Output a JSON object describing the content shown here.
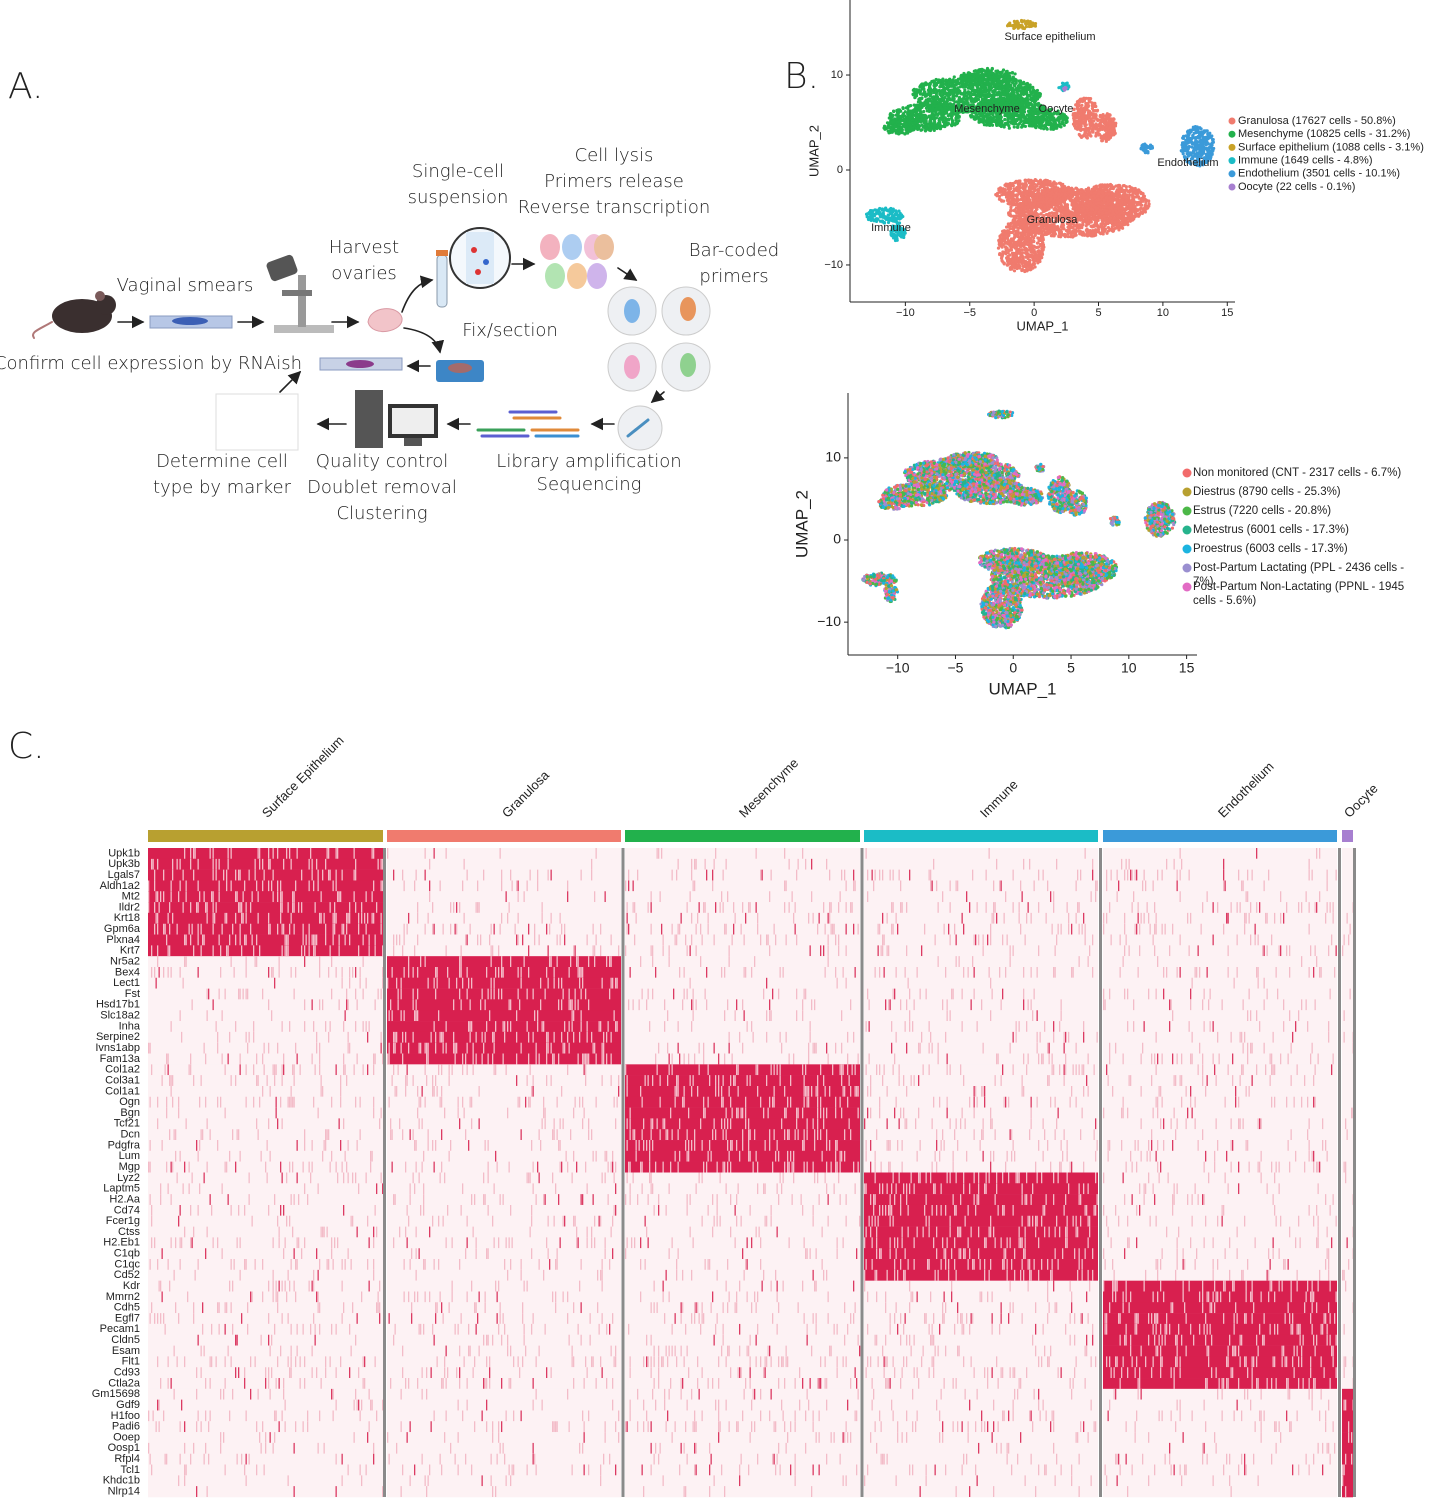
{
  "panel_a": {
    "label": "A.",
    "steps": [
      {
        "lines": [
          "Vaginal smears"
        ]
      },
      {
        "lines": [
          "Harvest",
          "ovaries"
        ]
      },
      {
        "lines": [
          "Single-cell",
          "suspension"
        ]
      },
      {
        "lines": [
          "Cell lysis",
          "Primers release",
          "Reverse transcription"
        ]
      },
      {
        "lines": [
          "Bar-coded",
          "primers"
        ]
      },
      {
        "lines": [
          "Fix/section"
        ]
      },
      {
        "lines": [
          "Confirm cell expression by RNAish"
        ]
      },
      {
        "lines": [
          "Determine cell",
          "type by marker"
        ]
      },
      {
        "lines": [
          "Quality control",
          "Doublet removal",
          "Clustering"
        ]
      },
      {
        "lines": [
          "Library amplification",
          "Sequencing"
        ]
      }
    ]
  },
  "panel_b": {
    "label": "B.",
    "plots": [
      {
        "xlabel": "UMAP_1",
        "ylabel": "UMAP_2",
        "xlim": [
          -14.3,
          15.6
        ],
        "ylim": [
          -13.9,
          17.9
        ],
        "xticks": [
          {
            "value": -10,
            "label": "−10"
          },
          {
            "value": -5,
            "label": "−5"
          },
          0,
          5,
          10,
          15
        ],
        "yticks": [
          {
            "value": -10,
            "label": "−10"
          },
          0,
          10
        ],
        "cluster_labels": [
          "Surface epithelium",
          "Mesenchyme",
          "Oocyte",
          "Endothelium",
          "Granulosa",
          "Immune"
        ],
        "legend": [
          {
            "name": "Granulosa (17627 cells - 50.8%)",
            "color": "#f07b6e"
          },
          {
            "name": "Mesenchyme (10825 cells - 31.2%)",
            "color": "#22b14c"
          },
          {
            "name": "Surface epithelium (1088 cells - 3.1%)",
            "color": "#c9a227"
          },
          {
            "name": "Immune (1649 cells - 4.8%)",
            "color": "#1bbcc6"
          },
          {
            "name": "Endothelium (3501 cells - 10.1%)",
            "color": "#3b9ad9"
          },
          {
            "name": "Oocyte (22 cells - 0.1%)",
            "color": "#a77fd0"
          }
        ]
      },
      {
        "xlabel": "UMAP_1",
        "ylabel": "UMAP_2",
        "xlim": [
          -14.3,
          15.9
        ],
        "ylim": [
          -14.0,
          17.9
        ],
        "xticks": [
          {
            "value": -10,
            "label": "−10"
          },
          {
            "value": -5,
            "label": "−5"
          },
          0,
          5,
          10,
          15
        ],
        "yticks": [
          {
            "value": -10,
            "label": "−10"
          },
          0,
          10
        ],
        "legend": [
          {
            "name": "Non monitored (CNT - 2317 cells - 6.7%)",
            "color": "#f26b6b"
          },
          {
            "name": "Diestrus (8790 cells - 25.3%)",
            "color": "#b8a030"
          },
          {
            "name": "Estrus (7220 cells - 20.8%)",
            "color": "#4cb848"
          },
          {
            "name": "Metestrus (6001 cells - 17.3%)",
            "color": "#26b38c"
          },
          {
            "name": "Proestrus (6003 cells - 17.3%)",
            "color": "#1cb4e0"
          },
          {
            "name": "Post-Partum Lactating (PPL - 2436 cells - 7%)",
            "color": "#9a8fd0"
          },
          {
            "name": "Post-Partum Non-Lactating (PPNL - 1945 cells - 5.6%)",
            "color": "#e26bc4"
          }
        ]
      }
    ]
  },
  "panel_c": {
    "label": "C.",
    "clusters": [
      {
        "name": "Surface Epithelium",
        "color": "#b8a030"
      },
      {
        "name": "Granulosa",
        "color": "#f07b6e"
      },
      {
        "name": "Mesenchyme",
        "color": "#22b14c"
      },
      {
        "name": "Immune",
        "color": "#1bbcc6"
      },
      {
        "name": "Endothelium",
        "color": "#3b9ad9"
      },
      {
        "name": "Oocyte",
        "color": "#a77fd0"
      }
    ],
    "genes": [
      "Upk1b",
      "Upk3b",
      "Lgals7",
      "Aldh1a2",
      "Mt2",
      "Ildr2",
      "Krt18",
      "Gpm6a",
      "Plxna4",
      "Krt7",
      "Nr5a2",
      "Bex4",
      "Lect1",
      "Fst",
      "Hsd17b1",
      "Slc18a2",
      "Inha",
      "Serpine2",
      "Ivns1abp",
      "Fam13a",
      "Col1a2",
      "Col3a1",
      "Col1a1",
      "Ogn",
      "Bgn",
      "Tcf21",
      "Dcn",
      "Pdgfra",
      "Lum",
      "Mgp",
      "Lyz2",
      "Laptm5",
      "H2.Aa",
      "Cd74",
      "Fcer1g",
      "Ctss",
      "H2.Eb1",
      "C1qb",
      "C1qc",
      "Cd52",
      "Kdr",
      "Mmrn2",
      "Cdh5",
      "Egfl7",
      "Pecam1",
      "Cldn5",
      "Esam",
      "Flt1",
      "Cd93",
      "Ctla2a",
      "Gm15698",
      "Gdf9",
      "H1foo",
      "Padi6",
      "Ooep",
      "Oosp1",
      "Rfpl4",
      "Tcl1",
      "Khdc1b",
      "Nlrp14"
    ]
  }
}
